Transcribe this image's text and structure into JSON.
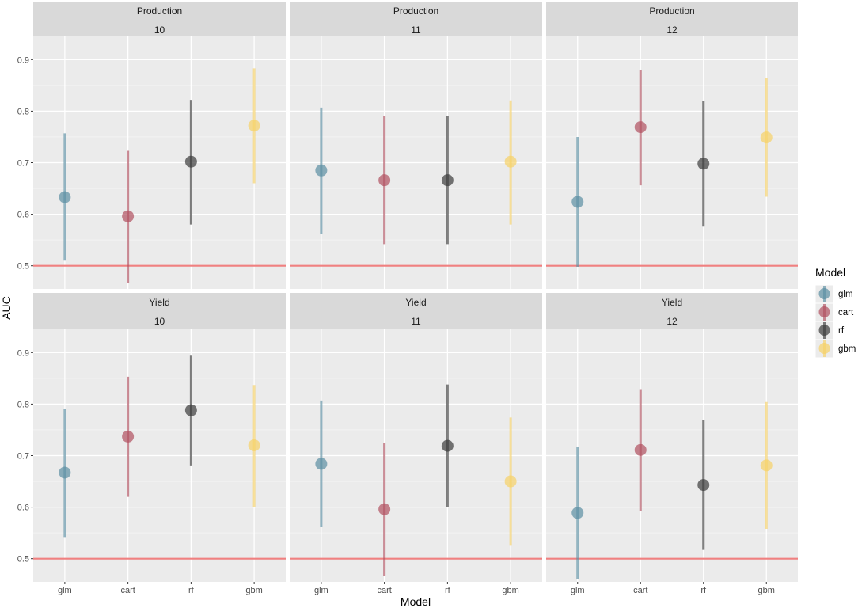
{
  "chart_data": {
    "type": "pointrange",
    "xlabel": "Model",
    "ylabel": "AUC",
    "ylim": [
      0.455,
      0.945
    ],
    "yticks": [
      0.5,
      0.6,
      0.7,
      0.8,
      0.9
    ],
    "ytick_labels": [
      "0.5",
      "0.6",
      "0.7",
      "0.8",
      "0.9"
    ],
    "categories": [
      "glm",
      "cart",
      "rf",
      "gbm"
    ],
    "reference_line": 0.5,
    "legend": {
      "title": "Model",
      "position": "right",
      "items": [
        {
          "name": "glm",
          "color": "#5b8fa3"
        },
        {
          "name": "cart",
          "color": "#b1505f"
        },
        {
          "name": "rf",
          "color": "#3c3c3c"
        },
        {
          "name": "gbm",
          "color": "#f6d167"
        }
      ]
    },
    "ref_color": "#f08080",
    "panels": [
      {
        "row": "Production",
        "col": "10",
        "points": [
          {
            "model": "glm",
            "auc": 0.633,
            "low": 0.51,
            "high": 0.757
          },
          {
            "model": "cart",
            "auc": 0.596,
            "low": 0.467,
            "high": 0.723
          },
          {
            "model": "rf",
            "auc": 0.702,
            "low": 0.58,
            "high": 0.822
          },
          {
            "model": "gbm",
            "auc": 0.772,
            "low": 0.66,
            "high": 0.883
          }
        ]
      },
      {
        "row": "Production",
        "col": "11",
        "points": [
          {
            "model": "glm",
            "auc": 0.685,
            "low": 0.562,
            "high": 0.807
          },
          {
            "model": "cart",
            "auc": 0.666,
            "low": 0.542,
            "high": 0.79
          },
          {
            "model": "rf",
            "auc": 0.666,
            "low": 0.542,
            "high": 0.79
          },
          {
            "model": "gbm",
            "auc": 0.702,
            "low": 0.58,
            "high": 0.821
          }
        ]
      },
      {
        "row": "Production",
        "col": "12",
        "points": [
          {
            "model": "glm",
            "auc": 0.624,
            "low": 0.498,
            "high": 0.75
          },
          {
            "model": "cart",
            "auc": 0.769,
            "low": 0.656,
            "high": 0.88
          },
          {
            "model": "rf",
            "auc": 0.698,
            "low": 0.576,
            "high": 0.819
          },
          {
            "model": "gbm",
            "auc": 0.749,
            "low": 0.634,
            "high": 0.864
          }
        ]
      },
      {
        "row": "Yield",
        "col": "10",
        "points": [
          {
            "model": "glm",
            "auc": 0.667,
            "low": 0.542,
            "high": 0.791
          },
          {
            "model": "cart",
            "auc": 0.737,
            "low": 0.62,
            "high": 0.853
          },
          {
            "model": "rf",
            "auc": 0.788,
            "low": 0.681,
            "high": 0.894
          },
          {
            "model": "gbm",
            "auc": 0.72,
            "low": 0.601,
            "high": 0.837
          }
        ]
      },
      {
        "row": "Yield",
        "col": "11",
        "points": [
          {
            "model": "glm",
            "auc": 0.684,
            "low": 0.561,
            "high": 0.807
          },
          {
            "model": "cart",
            "auc": 0.596,
            "low": 0.467,
            "high": 0.724
          },
          {
            "model": "rf",
            "auc": 0.719,
            "low": 0.6,
            "high": 0.838
          },
          {
            "model": "gbm",
            "auc": 0.65,
            "low": 0.525,
            "high": 0.774
          }
        ]
      },
      {
        "row": "Yield",
        "col": "12",
        "points": [
          {
            "model": "glm",
            "auc": 0.589,
            "low": 0.46,
            "high": 0.717
          },
          {
            "model": "cart",
            "auc": 0.711,
            "low": 0.592,
            "high": 0.829
          },
          {
            "model": "rf",
            "auc": 0.643,
            "low": 0.517,
            "high": 0.769
          },
          {
            "model": "gbm",
            "auc": 0.681,
            "low": 0.558,
            "high": 0.804
          }
        ]
      }
    ]
  }
}
